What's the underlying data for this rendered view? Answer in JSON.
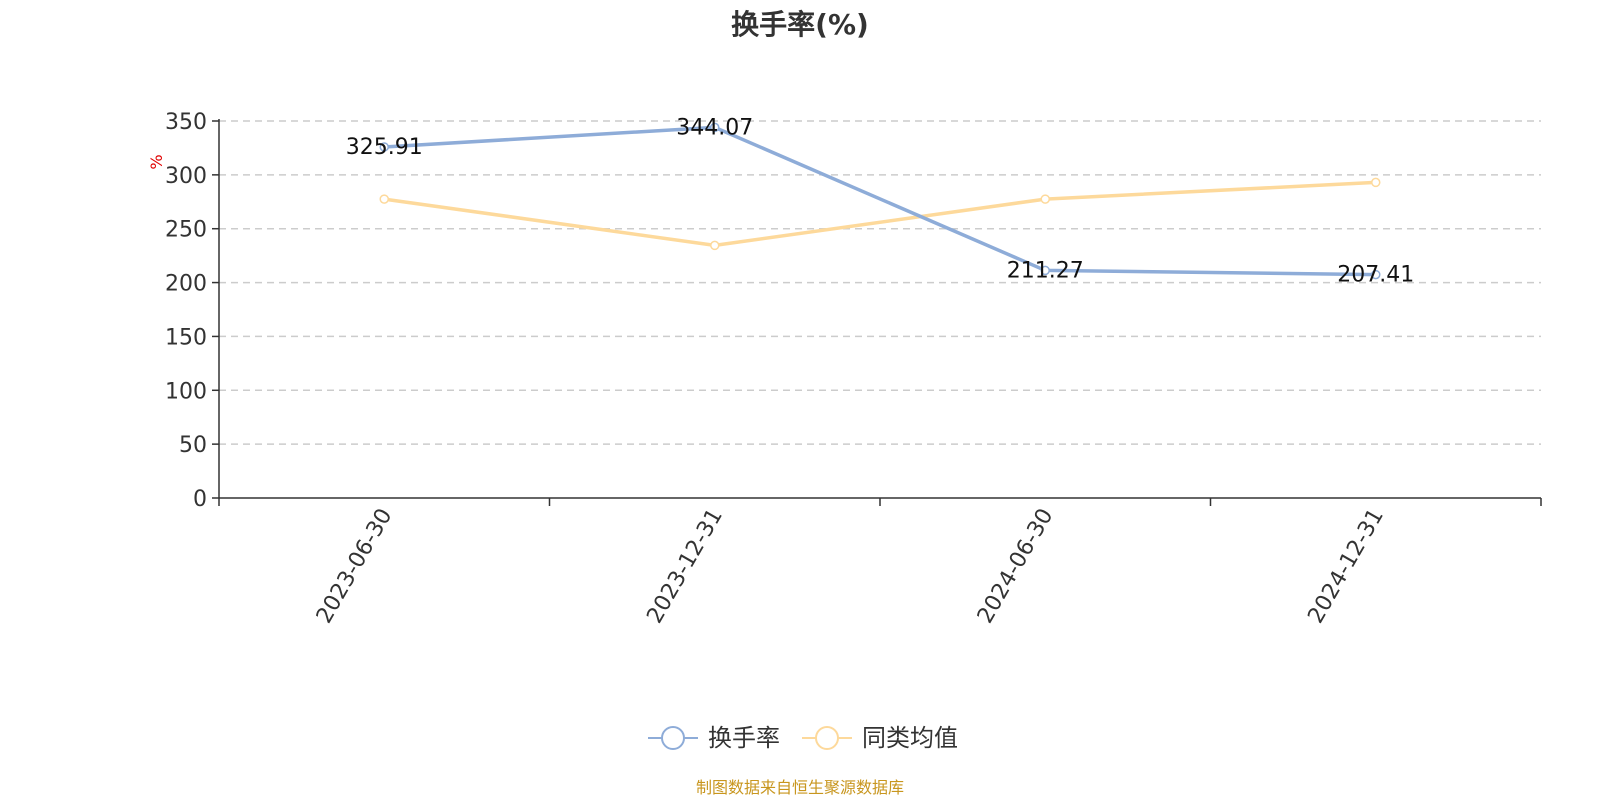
{
  "chart_data": {
    "type": "line",
    "title": "换手率(%)",
    "ylabel": "%",
    "xlabel": "",
    "categories": [
      "2023-06-30",
      "2023-12-31",
      "2024-06-30",
      "2024-12-31"
    ],
    "ylim": [
      0,
      350
    ],
    "yticks": [
      0,
      50,
      100,
      150,
      200,
      250,
      300,
      350
    ],
    "grid": true,
    "legend_position": "bottom-center",
    "series": [
      {
        "name": "换手率",
        "color": "#8eacd8",
        "values": [
          325.91,
          344.07,
          211.27,
          207.41
        ],
        "labels": [
          "325.91",
          "344.07",
          "211.27",
          "207.41"
        ]
      },
      {
        "name": "同类均值",
        "color": "#fdd99b",
        "values": [
          277.5,
          234.5,
          277.5,
          293
        ]
      }
    ],
    "source": "制图数据来自恒生聚源数据库",
    "colors": {
      "unit": "#e00000",
      "source": "#c8961e",
      "axis": "#333333",
      "grid": "#cccccc"
    }
  }
}
